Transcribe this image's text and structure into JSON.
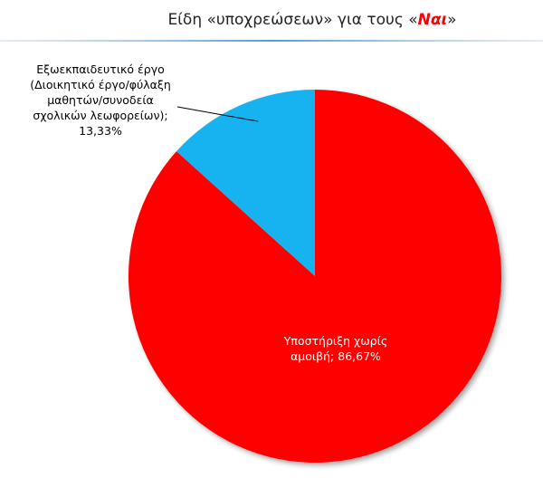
{
  "chart_data": {
    "type": "pie",
    "title": {
      "text": "Είδη «υποχρεώσεων» για τους «",
      "highlight": "Ναι",
      "end": "»"
    },
    "categories": [
      "Υποστήριξη χωρίς αμοιβή",
      "Εξωεκπαιδευτικό έργο (Διοικητικό έργο/φύλαξη μαθητών/συνοδεία σχολικών λεωφορείων)"
    ],
    "values": [
      86.67,
      13.33
    ],
    "value_labels": [
      "86,67%",
      "13,33%"
    ],
    "separator": ";",
    "colors": [
      "#ff0000",
      "#17b3f0"
    ]
  }
}
